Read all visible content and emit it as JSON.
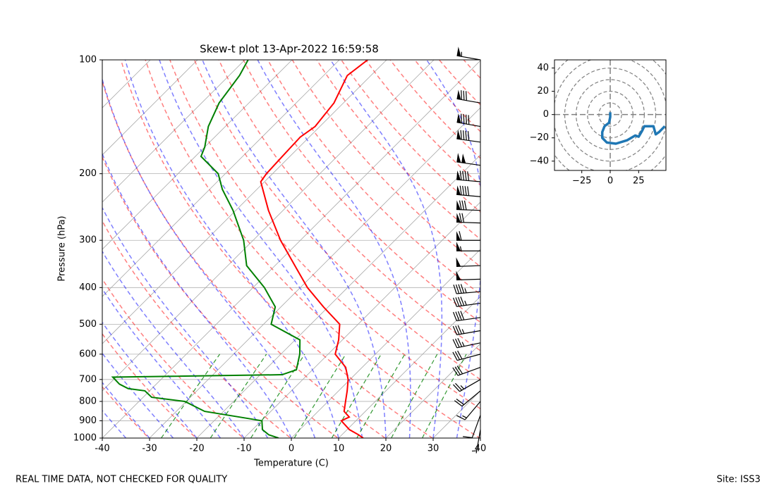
{
  "chart_data": [
    {
      "type": "skewt",
      "title": "Skew-t plot 13-Apr-2022 16:59:58",
      "x_label": "Temperature (C)",
      "y_label": "Pressure (hPa)",
      "xlim": [
        -40,
        40
      ],
      "xticks": [
        -40,
        -30,
        -20,
        -10,
        0,
        10,
        20,
        30,
        40
      ],
      "ylim": [
        1000,
        100
      ],
      "yticks": [
        100,
        200,
        300,
        400,
        500,
        600,
        700,
        800,
        900,
        1000
      ],
      "log_y": true,
      "grid": true,
      "series": [
        {
          "color": "#ff0000",
          "pressure": [
            1000,
            980,
            950,
            900,
            880,
            850,
            800,
            750,
            700,
            650,
            600,
            550,
            500,
            450,
            400,
            350,
            300,
            250,
            210,
            200,
            180,
            160,
            150,
            130,
            110,
            100
          ],
          "values": [
            15.2,
            13.5,
            10.5,
            6.9,
            7.8,
            5.5,
            3.7,
            1.8,
            -0.4,
            -3.5,
            -8.5,
            -10.8,
            -13.9,
            -21,
            -28.5,
            -35.8,
            -44.2,
            -53.1,
            -60.8,
            -61.3,
            -61.6,
            -61.9,
            -61,
            -62,
            -65,
            -64
          ]
        },
        {
          "color": "#008000",
          "pressure": [
            1000,
            980,
            950,
            900,
            880,
            850,
            800,
            780,
            750,
            740,
            720,
            690,
            680,
            660,
            600,
            550,
            500,
            450,
            400,
            350,
            300,
            250,
            220,
            200,
            180,
            170,
            150,
            130,
            110,
            100
          ],
          "values": [
            -2.7,
            -5.5,
            -7.9,
            -9.9,
            -15.4,
            -24,
            -30.3,
            -38.2,
            -41,
            -45,
            -47.8,
            -50.7,
            -15.4,
            -13.4,
            -16,
            -19,
            -28.4,
            -31.2,
            -37.6,
            -46,
            -52,
            -60.6,
            -67.3,
            -71.5,
            -78.8,
            -80,
            -83.6,
            -86.3,
            -87.8,
            -89.3
          ]
        }
      ],
      "wind": {
        "pressure": [
          100,
          130,
          150,
          165,
          190,
          210,
          230,
          250,
          270,
          300,
          320,
          350,
          380,
          410,
          440,
          480,
          520,
          560,
          600,
          650,
          700,
          750,
          800,
          870,
          950
        ],
        "speed": [
          55,
          80,
          90,
          90,
          100,
          90,
          90,
          80,
          70,
          60,
          55,
          50,
          50,
          45,
          45,
          40,
          35,
          35,
          30,
          30,
          25,
          20,
          15,
          10,
          5
        ],
        "direction": [
          280,
          280,
          280,
          278,
          278,
          275,
          275,
          272,
          272,
          270,
          270,
          268,
          268,
          265,
          262,
          262,
          260,
          258,
          255,
          250,
          240,
          230,
          220,
          200,
          190
        ]
      }
    },
    {
      "type": "hodograph",
      "xlim": [
        -49,
        49
      ],
      "ylim": [
        -48,
        47
      ],
      "xticks": [
        {
          "value": -25,
          "label": "−25"
        },
        0,
        25
      ],
      "yticks": [
        {
          "value": -40,
          "label": "−40"
        },
        {
          "value": -20,
          "label": "−20"
        },
        0,
        20,
        40
      ],
      "rings": [
        10,
        20,
        30,
        40,
        50,
        60
      ],
      "color": "#1f77b4",
      "u": [
        0,
        0,
        -1,
        -5,
        -7,
        -7,
        -3,
        5,
        15,
        22,
        25,
        28,
        30,
        38,
        40,
        43,
        48
      ],
      "v": [
        2,
        -2,
        -7,
        -10,
        -15,
        -20,
        -24,
        -25,
        -22,
        -18,
        -19,
        -14,
        -10,
        -10,
        -17,
        -15,
        -10
      ]
    }
  ],
  "footer": {
    "left": "REAL TIME DATA, NOT CHECKED FOR QUALITY",
    "right": "Site: ISS3"
  }
}
